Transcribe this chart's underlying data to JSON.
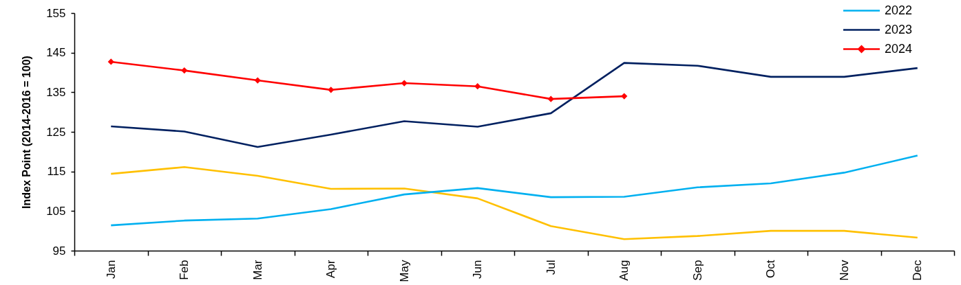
{
  "chart_data": {
    "type": "line",
    "ylabel": "Index Point (2014-2016 = 100)",
    "categories": [
      "Jan",
      "Feb",
      "Mar",
      "Apr",
      "May",
      "Jun",
      "Jul",
      "Aug",
      "Sep",
      "Oct",
      "Nov",
      "Dec"
    ],
    "ylim": [
      95,
      155
    ],
    "yticks": [
      95,
      105,
      115,
      125,
      135,
      145,
      155
    ],
    "grid": false,
    "legend": "top right",
    "series": [
      {
        "color": "#ffc000",
        "values": [
          114.4,
          116.1,
          113.9,
          110.6,
          110.7,
          108.2,
          101.2,
          97.9,
          98.7,
          100.0,
          100.0,
          98.3
        ]
      },
      {
        "name": "2022",
        "color": "#00b0f0",
        "values": [
          101.4,
          102.6,
          103.1,
          105.5,
          109.2,
          110.8,
          108.5,
          108.6,
          111.0,
          112.0,
          114.7,
          119.0
        ]
      },
      {
        "name": "2023",
        "color": "#002060",
        "values": [
          126.4,
          125.1,
          121.2,
          124.3,
          127.7,
          126.3,
          129.7,
          142.4,
          141.7,
          138.9,
          138.9,
          141.1
        ]
      },
      {
        "name": "2024",
        "color": "#ff0000",
        "marker": "diamond",
        "values": [
          142.7,
          140.5,
          138.0,
          135.6,
          137.3,
          136.5,
          133.3,
          134.0,
          null,
          null,
          null,
          null
        ]
      }
    ]
  }
}
